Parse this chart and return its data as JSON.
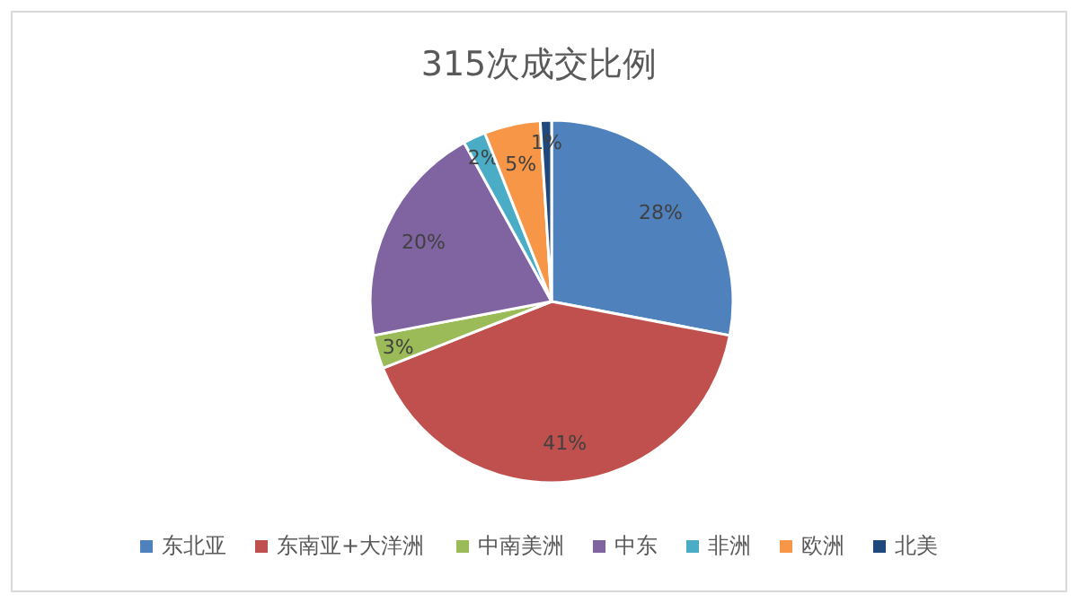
{
  "chart_data": {
    "type": "pie",
    "title": "315次成交比例",
    "categories": [
      "东北亚",
      "东南亚+大洋洲",
      "中南美洲",
      "中东",
      "非洲",
      "欧洲",
      "北美"
    ],
    "values": [
      28,
      41,
      3,
      20,
      2,
      5,
      1
    ],
    "value_labels": [
      "28%",
      "41%",
      "3%",
      "20%",
      "2%",
      "5%",
      "1%"
    ],
    "colors": [
      "#4f81bd",
      "#c0504d",
      "#9bbb59",
      "#8064a2",
      "#4bacc6",
      "#f79646",
      "#1f497d"
    ],
    "legend": "bottom"
  }
}
